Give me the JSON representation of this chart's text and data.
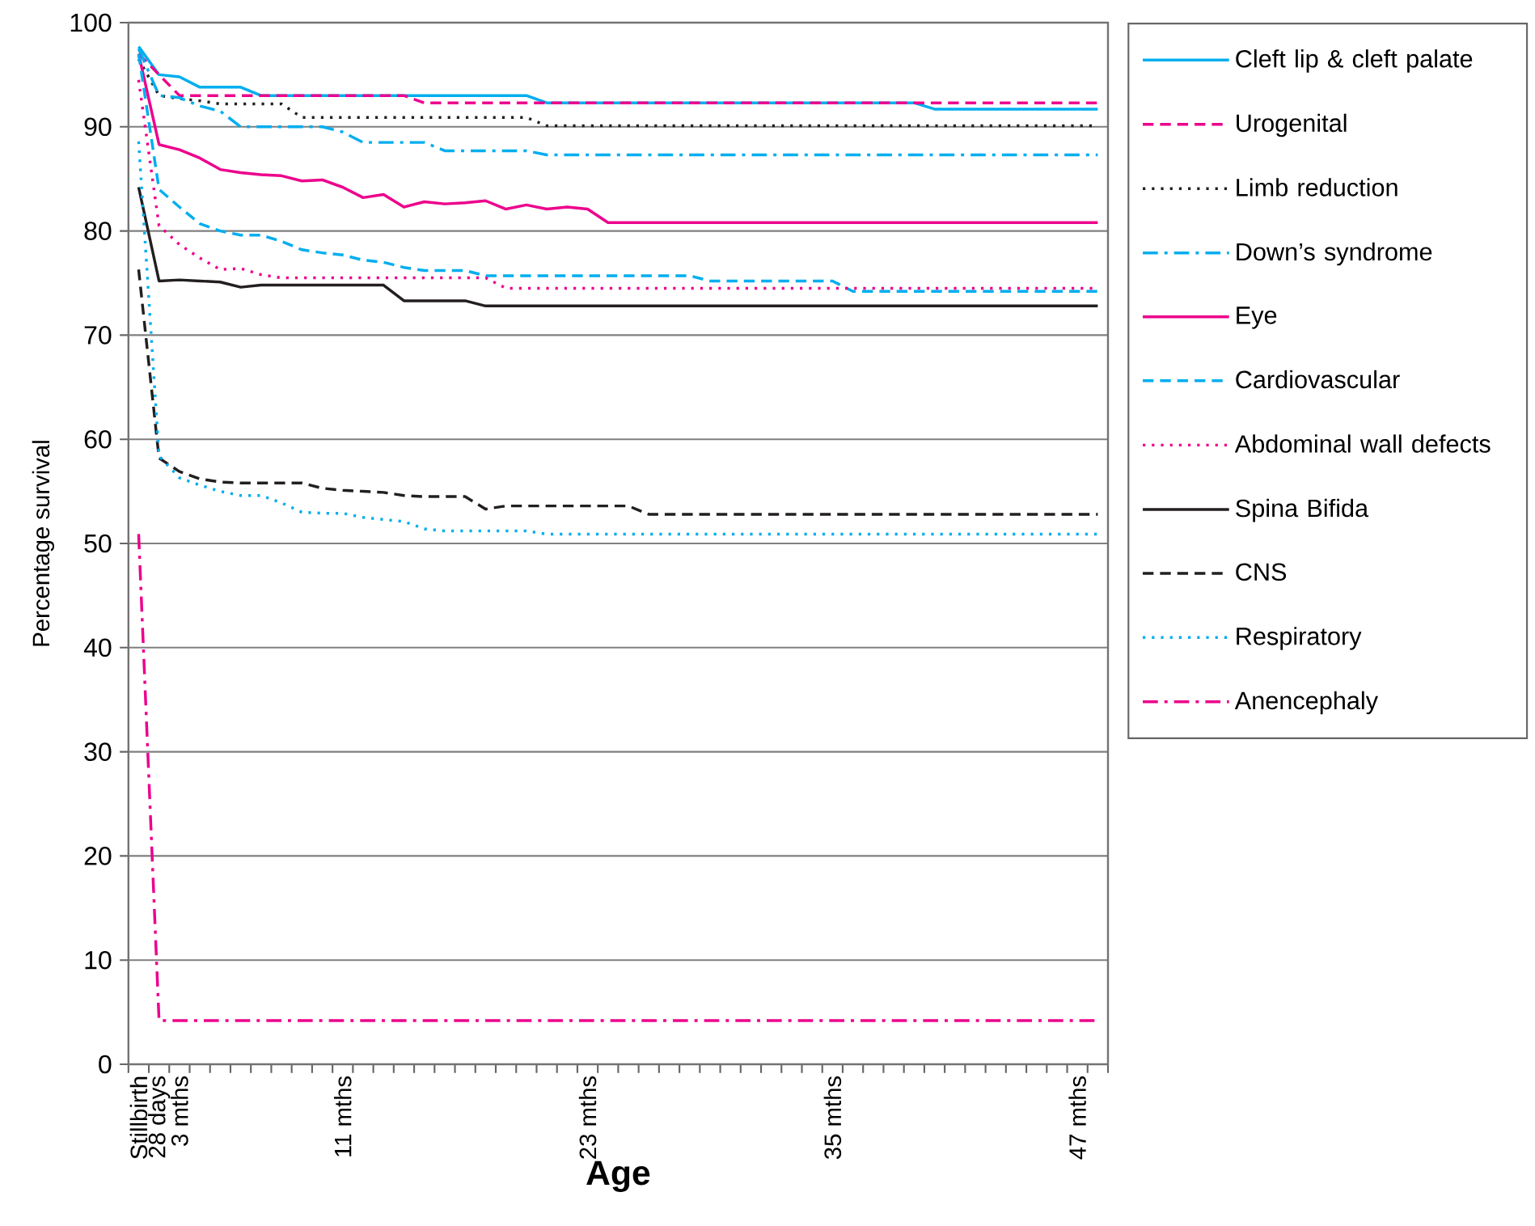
{
  "chart_data": {
    "type": "line",
    "xlabel": "Age",
    "ylabel": "Percentage survival",
    "categories": [
      "Stillbirth",
      "28 days",
      "3 mths",
      null,
      null,
      null,
      null,
      null,
      null,
      null,
      "11 mths",
      null,
      null,
      null,
      null,
      null,
      null,
      null,
      null,
      null,
      null,
      null,
      "23 mths",
      null,
      null,
      null,
      null,
      null,
      null,
      null,
      null,
      null,
      null,
      null,
      "35 mths",
      null,
      null,
      null,
      null,
      null,
      null,
      null,
      null,
      null,
      null,
      null,
      "47 mths",
      null
    ],
    "ylim": [
      0,
      100
    ],
    "yticks": [
      0,
      10,
      20,
      30,
      40,
      50,
      60,
      70,
      80,
      90,
      100
    ],
    "grid": "y",
    "legend": "right",
    "marker": "none",
    "series": [
      {
        "name": "Cleft lip & cleft palate",
        "color": "#00aeef",
        "line_style": "solid",
        "values": [
          97.7,
          95.0,
          94.8,
          93.8,
          93.8,
          93.8,
          93.0,
          93.0,
          93.0,
          93.0,
          93.0,
          93.0,
          93.0,
          93.0,
          93.0,
          93.0,
          93.0,
          93.0,
          93.0,
          93.0,
          92.3,
          92.3,
          92.3,
          92.3,
          92.3,
          92.3,
          92.3,
          92.3,
          92.3,
          92.3,
          92.3,
          92.3,
          92.3,
          92.3,
          92.3,
          92.3,
          92.3,
          92.3,
          92.3,
          91.7,
          91.7,
          91.7,
          91.7,
          91.7,
          91.7,
          91.7,
          91.7,
          91.7
        ]
      },
      {
        "name": "Urogenital",
        "color": "#ec008c",
        "line_style": "dashed",
        "values": [
          97.0,
          95.0,
          93.0,
          93.0,
          93.0,
          93.0,
          93.0,
          93.0,
          93.0,
          93.0,
          93.0,
          93.0,
          93.0,
          93.0,
          92.3,
          92.3,
          92.3,
          92.3,
          92.3,
          92.3,
          92.3,
          92.3,
          92.3,
          92.3,
          92.3,
          92.3,
          92.3,
          92.3,
          92.3,
          92.3,
          92.3,
          92.3,
          92.3,
          92.3,
          92.3,
          92.3,
          92.3,
          92.3,
          92.3,
          92.3,
          92.3,
          92.3,
          92.3,
          92.3,
          92.3,
          92.3,
          92.3,
          92.3
        ]
      },
      {
        "name": "Limb reduction",
        "color": "#231f20",
        "line_style": "dotted",
        "values": [
          96.5,
          93.0,
          92.7,
          92.5,
          92.2,
          92.2,
          92.2,
          92.2,
          90.9,
          90.9,
          90.9,
          90.9,
          90.9,
          90.9,
          90.9,
          90.9,
          90.9,
          90.9,
          90.9,
          90.9,
          90.1,
          90.1,
          90.1,
          90.1,
          90.1,
          90.1,
          90.1,
          90.1,
          90.1,
          90.1,
          90.1,
          90.1,
          90.1,
          90.1,
          90.1,
          90.1,
          90.1,
          90.1,
          90.1,
          90.1,
          90.1,
          90.1,
          90.1,
          90.1,
          90.1,
          90.1,
          90.1,
          90.1
        ]
      },
      {
        "name": "Down’s syndrome",
        "color": "#00aeef",
        "line_style": "dashdot",
        "values": [
          97.5,
          93.0,
          92.8,
          92.0,
          91.5,
          90.0,
          90.0,
          90.0,
          90.0,
          90.0,
          89.5,
          88.5,
          88.5,
          88.5,
          88.5,
          87.7,
          87.7,
          87.7,
          87.7,
          87.7,
          87.3,
          87.3,
          87.3,
          87.3,
          87.3,
          87.3,
          87.3,
          87.3,
          87.3,
          87.3,
          87.3,
          87.3,
          87.3,
          87.3,
          87.3,
          87.3,
          87.3,
          87.3,
          87.3,
          87.3,
          87.3,
          87.3,
          87.3,
          87.3,
          87.3,
          87.3,
          87.3,
          87.3
        ]
      },
      {
        "name": "Eye",
        "color": "#ec008c",
        "line_style": "solid",
        "values": [
          97.0,
          88.3,
          87.8,
          87.0,
          85.9,
          85.6,
          85.4,
          85.3,
          84.8,
          84.9,
          84.2,
          83.2,
          83.5,
          82.3,
          82.8,
          82.6,
          82.7,
          82.9,
          82.1,
          82.5,
          82.1,
          82.3,
          82.1,
          80.8,
          80.8,
          80.8,
          80.8,
          80.8,
          80.8,
          80.8,
          80.8,
          80.8,
          80.8,
          80.8,
          80.8,
          80.8,
          80.8,
          80.8,
          80.8,
          80.8,
          80.8,
          80.8,
          80.8,
          80.8,
          80.8,
          80.8,
          80.8,
          80.8
        ]
      },
      {
        "name": "Cardiovascular",
        "color": "#00aeef",
        "line_style": "dashed",
        "values": [
          97.0,
          84.0,
          82.3,
          80.7,
          80.0,
          79.6,
          79.6,
          79.0,
          78.2,
          77.9,
          77.7,
          77.2,
          77.0,
          76.5,
          76.2,
          76.2,
          76.2,
          75.7,
          75.7,
          75.7,
          75.7,
          75.7,
          75.7,
          75.7,
          75.7,
          75.7,
          75.7,
          75.7,
          75.2,
          75.2,
          75.2,
          75.2,
          75.2,
          75.2,
          75.2,
          74.2,
          74.2,
          74.2,
          74.2,
          74.2,
          74.2,
          74.2,
          74.2,
          74.2,
          74.2,
          74.2,
          74.2,
          74.2
        ]
      },
      {
        "name": "Abdominal wall defects",
        "color": "#ec008c",
        "line_style": "dotted",
        "values": [
          94.5,
          80.5,
          78.7,
          77.4,
          76.3,
          76.4,
          75.8,
          75.5,
          75.5,
          75.5,
          75.5,
          75.5,
          75.5,
          75.5,
          75.5,
          75.5,
          75.5,
          75.5,
          74.5,
          74.5,
          74.5,
          74.5,
          74.5,
          74.5,
          74.5,
          74.5,
          74.5,
          74.5,
          74.5,
          74.5,
          74.5,
          74.5,
          74.5,
          74.5,
          74.5,
          74.5,
          74.5,
          74.5,
          74.5,
          74.5,
          74.5,
          74.5,
          74.5,
          74.5,
          74.5,
          74.5,
          74.5,
          74.5
        ]
      },
      {
        "name": "Spina Bifida",
        "color": "#231f20",
        "line_style": "solid",
        "values": [
          84.2,
          75.2,
          75.3,
          75.2,
          75.1,
          74.6,
          74.8,
          74.8,
          74.8,
          74.8,
          74.8,
          74.8,
          74.8,
          73.3,
          73.3,
          73.3,
          73.3,
          72.8,
          72.8,
          72.8,
          72.8,
          72.8,
          72.8,
          72.8,
          72.8,
          72.8,
          72.8,
          72.8,
          72.8,
          72.8,
          72.8,
          72.8,
          72.8,
          72.8,
          72.8,
          72.8,
          72.8,
          72.8,
          72.8,
          72.8,
          72.8,
          72.8,
          72.8,
          72.8,
          72.8,
          72.8,
          72.8,
          72.8
        ]
      },
      {
        "name": "CNS",
        "color": "#231f20",
        "line_style": "dashed",
        "values": [
          76.3,
          58.2,
          56.9,
          56.2,
          55.9,
          55.8,
          55.8,
          55.8,
          55.8,
          55.3,
          55.1,
          55.0,
          54.9,
          54.6,
          54.5,
          54.5,
          54.5,
          53.3,
          53.6,
          53.6,
          53.6,
          53.6,
          53.6,
          53.6,
          53.6,
          52.8,
          52.8,
          52.8,
          52.8,
          52.8,
          52.8,
          52.8,
          52.8,
          52.8,
          52.8,
          52.8,
          52.8,
          52.8,
          52.8,
          52.8,
          52.8,
          52.8,
          52.8,
          52.8,
          52.8,
          52.8,
          52.8,
          52.8
        ]
      },
      {
        "name": "Respiratory",
        "color": "#00aeef",
        "line_style": "dotted",
        "values": [
          88.6,
          58.4,
          56.3,
          55.6,
          55.0,
          54.6,
          54.6,
          53.9,
          53.0,
          52.9,
          52.9,
          52.5,
          52.3,
          52.1,
          51.4,
          51.2,
          51.2,
          51.2,
          51.2,
          51.2,
          50.9,
          50.9,
          50.9,
          50.9,
          50.9,
          50.9,
          50.9,
          50.9,
          50.9,
          50.9,
          50.9,
          50.9,
          50.9,
          50.9,
          50.9,
          50.9,
          50.9,
          50.9,
          50.9,
          50.9,
          50.9,
          50.9,
          50.9,
          50.9,
          50.9,
          50.9,
          50.9,
          50.9
        ]
      },
      {
        "name": "Anencephaly",
        "color": "#ec008c",
        "line_style": "dashdot",
        "values": [
          50.9,
          4.2,
          4.2,
          4.2,
          4.2,
          4.2,
          4.2,
          4.2,
          4.2,
          4.2,
          4.2,
          4.2,
          4.2,
          4.2,
          4.2,
          4.2,
          4.2,
          4.2,
          4.2,
          4.2,
          4.2,
          4.2,
          4.2,
          4.2,
          4.2,
          4.2,
          4.2,
          4.2,
          4.2,
          4.2,
          4.2,
          4.2,
          4.2,
          4.2,
          4.2,
          4.2,
          4.2,
          4.2,
          4.2,
          4.2,
          4.2,
          4.2,
          4.2,
          4.2,
          4.2,
          4.2,
          4.2,
          4.2
        ]
      }
    ]
  }
}
